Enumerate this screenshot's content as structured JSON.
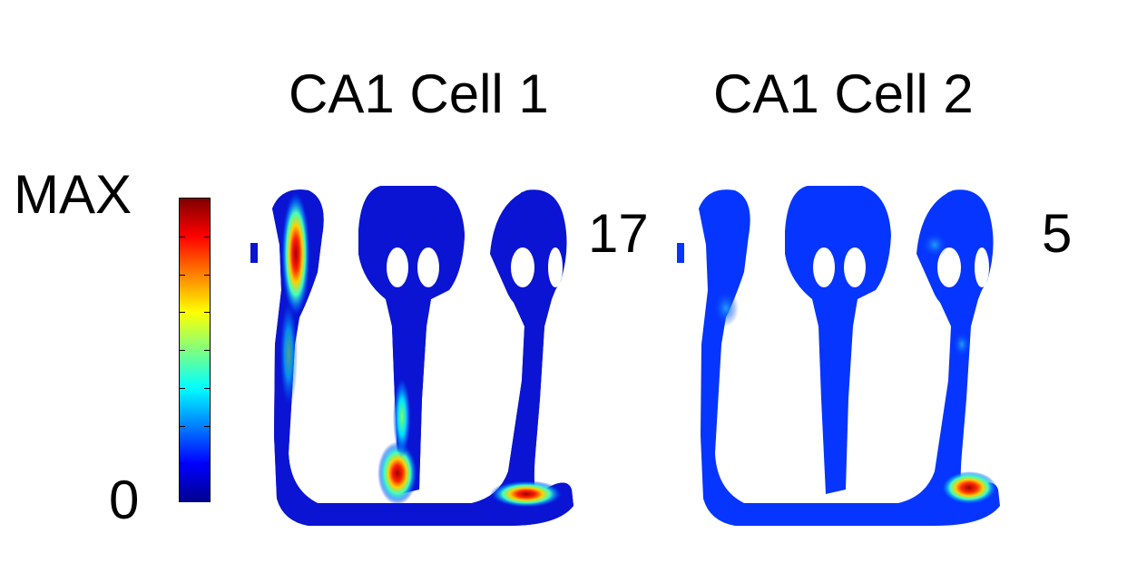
{
  "titles": {
    "cell1": "CA1 Cell 1",
    "cell2": "CA1 Cell 2"
  },
  "colorbar": {
    "max_label": "MAX",
    "min_label": "0",
    "colormap": "jet"
  },
  "cell1": {
    "peak_rate": "17",
    "background_color": "#0a14d2"
  },
  "cell2": {
    "peak_rate": "5",
    "background_color": "#0535ff"
  }
}
